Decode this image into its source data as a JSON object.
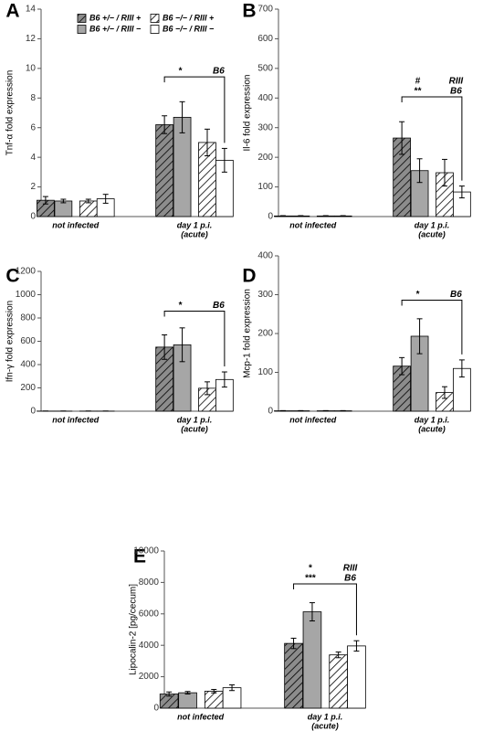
{
  "chart_data": [
    {
      "type": "bar",
      "panel": "A",
      "ylabel": "Tnf-α fold expression",
      "categories": [
        [
          "not infected"
        ],
        [
          "day 1 p.i.",
          "(acute)"
        ]
      ],
      "ylim": [
        0,
        14
      ],
      "yticks": [
        0,
        2,
        4,
        6,
        8,
        10,
        12,
        14
      ],
      "legend": "top",
      "series": [
        {
          "name": "B6 +/− / RIII +",
          "color": "#8c8c8c",
          "hatch": true,
          "values": [
            1.1,
            6.2
          ],
          "errors": [
            0.25,
            0.6
          ]
        },
        {
          "name": "B6 +/− / RIII −",
          "color": "#a6a6a6",
          "hatch": false,
          "values": [
            1.05,
            6.7
          ],
          "errors": [
            0.12,
            1.05
          ]
        },
        {
          "name": "B6 −/− / RIII +",
          "color": "#ffffff",
          "hatch": true,
          "values": [
            1.05,
            5.0
          ],
          "errors": [
            0.12,
            0.9
          ]
        },
        {
          "name": "B6 −/− / RIII −",
          "color": "#ffffff",
          "hatch": false,
          "values": [
            1.2,
            3.8
          ],
          "errors": [
            0.3,
            0.8
          ]
        }
      ],
      "significance": {
        "left": [
          "*"
        ],
        "right": [
          "B6"
        ]
      }
    },
    {
      "type": "bar",
      "panel": "B",
      "ylabel": "Il-6 fold expression",
      "categories": [
        [
          "not infected"
        ],
        [
          "day 1 p.i.",
          "(acute)"
        ]
      ],
      "ylim": [
        0,
        700
      ],
      "yticks": [
        0,
        100,
        200,
        300,
        400,
        500,
        600,
        700
      ],
      "series": [
        {
          "color": "#8c8c8c",
          "hatch": true,
          "values": [
            2,
            265
          ],
          "errors": [
            1,
            55
          ]
        },
        {
          "color": "#a6a6a6",
          "hatch": false,
          "values": [
            2,
            155
          ],
          "errors": [
            1,
            40
          ]
        },
        {
          "color": "#ffffff",
          "hatch": true,
          "values": [
            2,
            148
          ],
          "errors": [
            1,
            45
          ]
        },
        {
          "color": "#ffffff",
          "hatch": false,
          "values": [
            2,
            83
          ],
          "errors": [
            1,
            20
          ]
        }
      ],
      "significance": {
        "left": [
          "#",
          "**"
        ],
        "right": [
          "RIII",
          "B6"
        ]
      }
    },
    {
      "type": "bar",
      "panel": "C",
      "ylabel": "Ifn-γ fold expression",
      "categories": [
        [
          "not infected"
        ],
        [
          "day 1 p.i.",
          "(acute)"
        ]
      ],
      "ylim": [
        0,
        1200
      ],
      "yticks": [
        0,
        200,
        400,
        600,
        800,
        1000,
        1200
      ],
      "series": [
        {
          "color": "#8c8c8c",
          "hatch": true,
          "values": [
            1,
            550
          ],
          "errors": [
            0.5,
            105
          ]
        },
        {
          "color": "#a6a6a6",
          "hatch": false,
          "values": [
            1,
            570
          ],
          "errors": [
            0.5,
            145
          ]
        },
        {
          "color": "#ffffff",
          "hatch": true,
          "values": [
            1,
            197
          ],
          "errors": [
            0.5,
            55
          ]
        },
        {
          "color": "#ffffff",
          "hatch": false,
          "values": [
            1,
            272
          ],
          "errors": [
            0.5,
            65
          ]
        }
      ],
      "significance": {
        "left": [
          "*"
        ],
        "right": [
          "B6"
        ]
      }
    },
    {
      "type": "bar",
      "panel": "D",
      "ylabel": "Mcp-1 fold expression",
      "categories": [
        [
          "not infected"
        ],
        [
          "day 1 p.i.",
          "(acute)"
        ]
      ],
      "ylim": [
        0,
        400
      ],
      "yticks": [
        0,
        100,
        200,
        300,
        400
      ],
      "series": [
        {
          "color": "#8c8c8c",
          "hatch": true,
          "values": [
            1,
            116
          ],
          "errors": [
            0.5,
            22
          ]
        },
        {
          "color": "#a6a6a6",
          "hatch": false,
          "values": [
            1,
            193
          ],
          "errors": [
            0.5,
            45
          ]
        },
        {
          "color": "#ffffff",
          "hatch": true,
          "values": [
            1,
            48
          ],
          "errors": [
            0.5,
            15
          ]
        },
        {
          "color": "#ffffff",
          "hatch": false,
          "values": [
            1,
            110
          ],
          "errors": [
            0.5,
            22
          ]
        }
      ],
      "significance": {
        "left": [
          "*"
        ],
        "right": [
          "B6"
        ]
      }
    },
    {
      "type": "bar",
      "panel": "E",
      "ylabel": "Lipocalin-2 [pg/cecum]",
      "categories": [
        [
          "not infected"
        ],
        [
          "day 1 p.i.",
          "(acute)"
        ]
      ],
      "ylim": [
        0,
        10000
      ],
      "yticks": [
        0,
        2000,
        4000,
        6000,
        8000,
        10000
      ],
      "series": [
        {
          "color": "#8c8c8c",
          "hatch": true,
          "values": [
            900,
            4120
          ],
          "errors": [
            130,
            330
          ]
        },
        {
          "color": "#a6a6a6",
          "hatch": false,
          "values": [
            980,
            6130
          ],
          "errors": [
            80,
            580
          ]
        },
        {
          "color": "#ffffff",
          "hatch": true,
          "values": [
            1080,
            3390
          ],
          "errors": [
            110,
            180
          ]
        },
        {
          "color": "#ffffff",
          "hatch": false,
          "values": [
            1300,
            3960
          ],
          "errors": [
            180,
            330
          ]
        }
      ],
      "significance": {
        "left": [
          "*",
          "***"
        ],
        "right": [
          "RIII",
          "B6"
        ]
      }
    }
  ]
}
